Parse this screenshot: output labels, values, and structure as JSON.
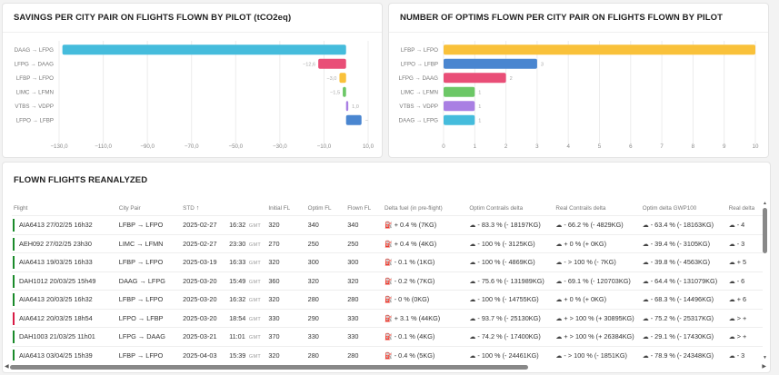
{
  "chart_data": [
    {
      "type": "bar",
      "orientation": "horizontal",
      "title": "SAVINGS PER CITY PAIR ON FLIGHTS FLOWN BY PILOT (tCO2eq)",
      "categories": [
        "DAAG → LFPG",
        "LFPG → DAAG",
        "LFBP → LFPO",
        "LIMC → LFMN",
        "VTBS → VDPP",
        "LFPO → LFBP"
      ],
      "values": [
        -128.5,
        -12.6,
        -3.0,
        -1.5,
        1.0,
        7.0
      ],
      "data_labels": [
        "",
        "−12,6",
        "−3,0",
        "−1,5",
        "1,0",
        "−"
      ],
      "colors": [
        "#45bcdc",
        "#e94e77",
        "#f9c13a",
        "#6cc766",
        "#a97fe3",
        "#4a86d0"
      ],
      "xlim": [
        -130,
        10
      ],
      "xticks": [
        -130,
        -110,
        -90,
        -70,
        -50,
        -30,
        -10,
        10
      ],
      "xtick_labels": [
        "−130,0",
        "−110,0",
        "−90,0",
        "−70,0",
        "−50,0",
        "−30,0",
        "−10,0",
        "10,0"
      ],
      "grid": true,
      "xlabel": "",
      "ylabel": ""
    },
    {
      "type": "bar",
      "orientation": "horizontal",
      "title": "NUMBER OF OPTIMS FLOWN PER CITY PAIR ON FLIGHTS FLOWN BY PILOT",
      "categories": [
        "LFBP → LFPO",
        "LFPO → LFBP",
        "LFPG → DAAG",
        "LIMC → LFMN",
        "VTBS → VDPP",
        "DAAG → LFPG"
      ],
      "values": [
        10,
        3,
        2,
        1,
        1,
        1
      ],
      "data_labels": [
        "",
        "3",
        "2",
        "1",
        "1",
        "1"
      ],
      "colors": [
        "#f9c13a",
        "#4a86d0",
        "#e94e77",
        "#6cc766",
        "#a97fe3",
        "#45bcdc"
      ],
      "xlim": [
        0,
        10
      ],
      "xticks": [
        0,
        1,
        2,
        3,
        4,
        5,
        6,
        7,
        8,
        9,
        10
      ],
      "xtick_labels": [
        "0",
        "1",
        "2",
        "3",
        "4",
        "5",
        "6",
        "7",
        "8",
        "9",
        "10"
      ],
      "grid": true,
      "xlabel": "",
      "ylabel": ""
    }
  ],
  "flights_card": {
    "title": "FLOWN FLIGHTS REANALYZED",
    "columns": [
      "Flight",
      "City Pair",
      "STD",
      "",
      "",
      "Initial FL",
      "Optim FL",
      "Flown FL",
      "Delta fuel (in pre-flight)",
      "Optim Contrails delta",
      "Real Contrails delta",
      "Optim delta GWP100",
      "Real delta"
    ],
    "sort_indicator": "↑",
    "timezone_label": "GMT",
    "status_colors": {
      "ok": "#1a8a2a",
      "warn": "#d81b45"
    },
    "rows": [
      {
        "status": "ok",
        "flight": "AIA6413 27/02/25 16h32",
        "city_pair": "LFBP → LFPO",
        "date": "2025-02-27",
        "time": "16:32",
        "initial_fl": "320",
        "optim_fl": "340",
        "flown_fl": "340",
        "delta_fuel": "+ 0.4 % (7KG)",
        "optim_contrails": "- 83.3 % (- 18197KG)",
        "real_contrails": "- 66.2 % (- 4829KG)",
        "optim_gwp": "- 63.4 % (- 18163KG)",
        "real_gwp": "- 4"
      },
      {
        "status": "ok",
        "flight": "AEH092 27/02/25 23h30",
        "city_pair": "LIMC → LFMN",
        "date": "2025-02-27",
        "time": "23:30",
        "initial_fl": "270",
        "optim_fl": "250",
        "flown_fl": "250",
        "delta_fuel": "+ 0.4 % (4KG)",
        "optim_contrails": "- 100 % (- 3125KG)",
        "real_contrails": "+ 0 % (+ 0KG)",
        "optim_gwp": "- 39.4 % (- 3105KG)",
        "real_gwp": "- 3"
      },
      {
        "status": "ok",
        "flight": "AIA6413 19/03/25 16h33",
        "city_pair": "LFBP → LFPO",
        "date": "2025-03-19",
        "time": "16:33",
        "initial_fl": "320",
        "optim_fl": "300",
        "flown_fl": "300",
        "delta_fuel": "- 0.1 % (1KG)",
        "optim_contrails": "- 100 % (- 4869KG)",
        "real_contrails": "- > 100 % (- 7KG)",
        "optim_gwp": "- 39.8 % (- 4563KG)",
        "real_gwp": "+ 5"
      },
      {
        "status": "ok",
        "flight": "DAH1012 20/03/25 15h49",
        "city_pair": "DAAG → LFPG",
        "date": "2025-03-20",
        "time": "15:49",
        "initial_fl": "360",
        "optim_fl": "320",
        "flown_fl": "320",
        "delta_fuel": "- 0.2 % (7KG)",
        "optim_contrails": "- 75.6 % (- 131989KG)",
        "real_contrails": "- 69.1 % (- 120703KG)",
        "optim_gwp": "- 64.4 % (- 131079KG)",
        "real_gwp": "- 6"
      },
      {
        "status": "ok",
        "flight": "AIA6413 20/03/25 16h32",
        "city_pair": "LFBP → LFPO",
        "date": "2025-03-20",
        "time": "16:32",
        "initial_fl": "320",
        "optim_fl": "280",
        "flown_fl": "280",
        "delta_fuel": "- 0 % (0KG)",
        "optim_contrails": "- 100 % (- 14755KG)",
        "real_contrails": "+ 0 % (+ 0KG)",
        "optim_gwp": "- 68.3 % (- 14496KG)",
        "real_gwp": "+ 6"
      },
      {
        "status": "warn",
        "flight": "AIA6412 20/03/25 18h54",
        "city_pair": "LFPO → LFBP",
        "date": "2025-03-20",
        "time": "18:54",
        "initial_fl": "330",
        "optim_fl": "290",
        "flown_fl": "330",
        "delta_fuel": "+ 3.1 % (44KG)",
        "optim_contrails": "- 93.7 % (- 25130KG)",
        "real_contrails": "+ > 100 % (+ 30895KG)",
        "optim_gwp": "- 75.2 % (- 25317KG)",
        "real_gwp": "> +"
      },
      {
        "status": "ok",
        "flight": "DAH1003 21/03/25 11h01",
        "city_pair": "LFPG → DAAG",
        "date": "2025-03-21",
        "time": "11:01",
        "initial_fl": "370",
        "optim_fl": "330",
        "flown_fl": "330",
        "delta_fuel": "- 0.1 % (4KG)",
        "optim_contrails": "- 74.2 % (- 17400KG)",
        "real_contrails": "+ > 100 % (+ 26384KG)",
        "optim_gwp": "- 29.1 % (- 17430KG)",
        "real_gwp": "> +"
      },
      {
        "status": "ok",
        "flight": "AIA6413 03/04/25 15h39",
        "city_pair": "LFBP → LFPO",
        "date": "2025-04-03",
        "time": "15:39",
        "initial_fl": "320",
        "optim_fl": "280",
        "flown_fl": "280",
        "delta_fuel": "- 0.4 % (5KG)",
        "optim_contrails": "- 100 % (- 24461KG)",
        "real_contrails": "- > 100 % (- 1851KG)",
        "optim_gwp": "- 78.9 % (- 24348KG)",
        "real_gwp": "- 3"
      }
    ]
  },
  "icons": {
    "fuel": "⛽",
    "cloud": "☁",
    "scroll_up": "▲",
    "scroll_down": "▼",
    "scroll_left": "◀",
    "scroll_right": "▶"
  }
}
